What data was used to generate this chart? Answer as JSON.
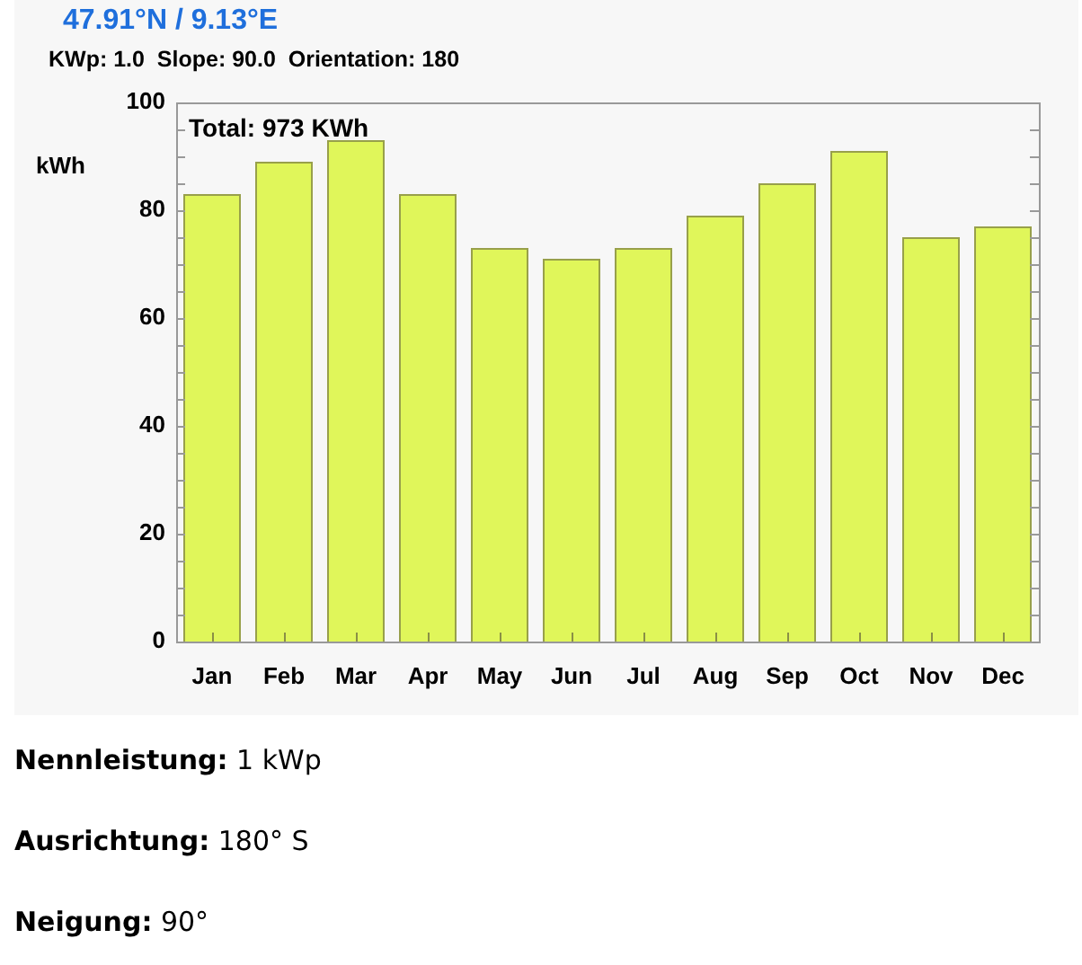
{
  "chart_data": {
    "type": "bar",
    "title": "47.91°N / 9.13°E",
    "subtitle": "KWp: 1.0  Slope: 90.0  Orientation: 180",
    "ylabel": "kWh",
    "categories": [
      "Jan",
      "Feb",
      "Mar",
      "Apr",
      "May",
      "Jun",
      "Jul",
      "Aug",
      "Sep",
      "Oct",
      "Nov",
      "Dec"
    ],
    "values": [
      83,
      89,
      93,
      83,
      73,
      71,
      73,
      79,
      85,
      91,
      75,
      77
    ],
    "color": "#e0f65a",
    "ylim": [
      0,
      100
    ],
    "yticks": [
      0,
      {
        "value": 5,
        "label": null
      },
      {
        "value": 10,
        "label": null
      },
      {
        "value": 15,
        "label": null
      },
      20,
      {
        "value": 25,
        "label": null
      },
      {
        "value": 30,
        "label": null
      },
      {
        "value": 35,
        "label": null
      },
      40,
      {
        "value": 45,
        "label": null
      },
      {
        "value": 50,
        "label": null
      },
      {
        "value": 55,
        "label": null
      },
      60,
      {
        "value": 65,
        "label": null
      },
      {
        "value": 70,
        "label": null
      },
      {
        "value": 75,
        "label": null
      },
      80,
      {
        "value": 85,
        "label": null
      },
      {
        "value": 90,
        "label": null
      },
      {
        "value": 95,
        "label": null
      },
      100
    ],
    "grid": false,
    "legend": false,
    "annotations": [
      "Total: 973 KWh",
      "Nennleistung: 1 kWp",
      "Ausrichtung: 180° S",
      "Neigung: 90°"
    ]
  }
}
